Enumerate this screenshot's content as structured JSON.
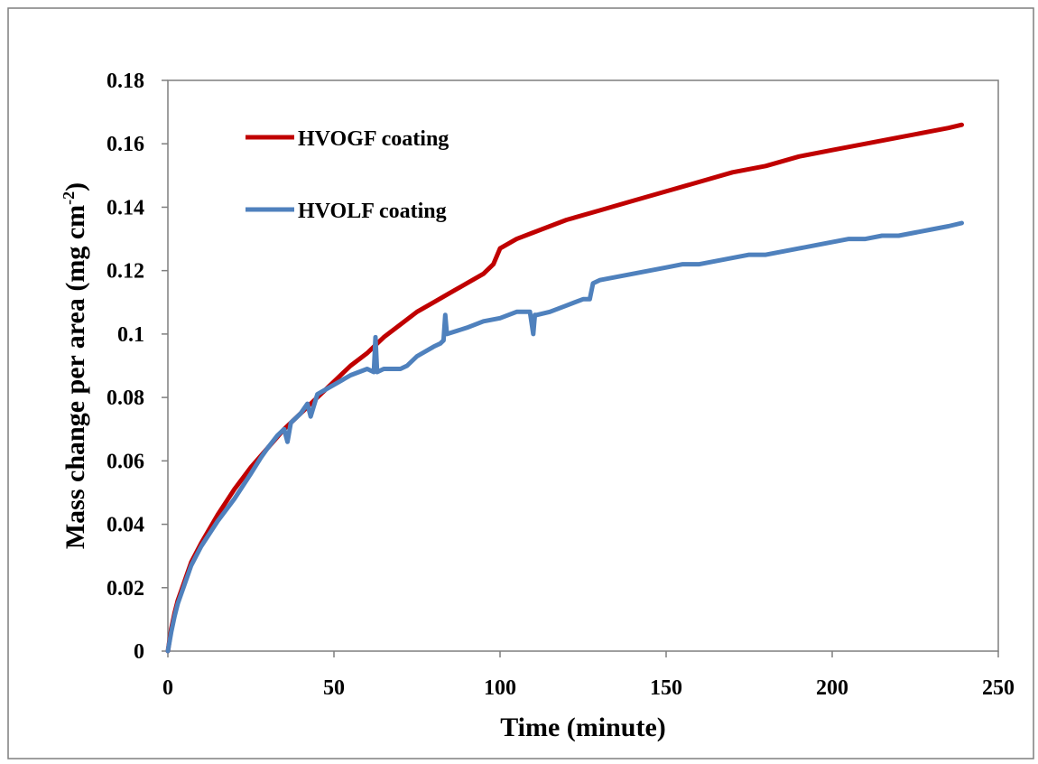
{
  "chart_data": {
    "type": "line",
    "title": "",
    "xlabel": "Time (minute)",
    "ylabel": {
      "main": "Mass change per  area (mg cm",
      "superscript": "-2",
      "close": ")"
    },
    "xlim": [
      0,
      250
    ],
    "ylim": [
      0,
      0.18
    ],
    "x_ticks": [
      "0",
      "50",
      "100",
      "150",
      "200",
      "250"
    ],
    "y_ticks": [
      "0",
      "0.02",
      "0.04",
      "0.06",
      "0.08",
      "0.1",
      "0.12",
      "0.14",
      "0.16",
      "0.18"
    ],
    "grid": false,
    "legend_position": "top-left",
    "series": [
      {
        "name": "HVOGF coating",
        "color": "#C00000",
        "x": [
          0,
          1,
          2,
          3,
          5,
          7,
          10,
          15,
          20,
          25,
          30,
          35,
          40,
          45,
          50,
          55,
          60,
          65,
          70,
          75,
          80,
          85,
          90,
          95,
          98,
          100,
          105,
          110,
          115,
          120,
          130,
          140,
          150,
          160,
          170,
          180,
          190,
          200,
          210,
          220,
          230,
          235,
          239
        ],
        "y": [
          0,
          0.007,
          0.012,
          0.016,
          0.022,
          0.028,
          0.034,
          0.043,
          0.051,
          0.058,
          0.064,
          0.07,
          0.075,
          0.08,
          0.085,
          0.09,
          0.094,
          0.099,
          0.103,
          0.107,
          0.11,
          0.113,
          0.116,
          0.119,
          0.122,
          0.127,
          0.13,
          0.132,
          0.134,
          0.136,
          0.139,
          0.142,
          0.145,
          0.148,
          0.151,
          0.153,
          0.156,
          0.158,
          0.16,
          0.162,
          0.164,
          0.165,
          0.166
        ]
      },
      {
        "name": "HVOLF coating",
        "color": "#4F81BD",
        "x": [
          0,
          1,
          2,
          3,
          5,
          7,
          10,
          15,
          20,
          25,
          28,
          30,
          33,
          35,
          36,
          37,
          40,
          42,
          43,
          45,
          50,
          55,
          60,
          62,
          62.5,
          63,
          65,
          70,
          72,
          75,
          80,
          82,
          83,
          83.5,
          84,
          90,
          95,
          100,
          105,
          109,
          110,
          110.5,
          111,
          115,
          120,
          125,
          127,
          128,
          130,
          135,
          140,
          145,
          150,
          155,
          160,
          165,
          170,
          175,
          180,
          185,
          190,
          195,
          200,
          205,
          210,
          215,
          220,
          225,
          230,
          235,
          239
        ],
        "y": [
          0,
          0.006,
          0.011,
          0.015,
          0.021,
          0.027,
          0.033,
          0.041,
          0.048,
          0.056,
          0.061,
          0.064,
          0.068,
          0.07,
          0.066,
          0.072,
          0.075,
          0.078,
          0.074,
          0.081,
          0.084,
          0.087,
          0.089,
          0.088,
          0.099,
          0.088,
          0.089,
          0.089,
          0.09,
          0.093,
          0.096,
          0.097,
          0.098,
          0.106,
          0.1,
          0.102,
          0.104,
          0.105,
          0.107,
          0.107,
          0.1,
          0.106,
          0.106,
          0.107,
          0.109,
          0.111,
          0.111,
          0.116,
          0.117,
          0.118,
          0.119,
          0.12,
          0.121,
          0.122,
          0.122,
          0.123,
          0.124,
          0.125,
          0.125,
          0.126,
          0.127,
          0.128,
          0.129,
          0.13,
          0.13,
          0.131,
          0.131,
          0.132,
          0.133,
          0.134,
          0.135
        ]
      }
    ]
  }
}
